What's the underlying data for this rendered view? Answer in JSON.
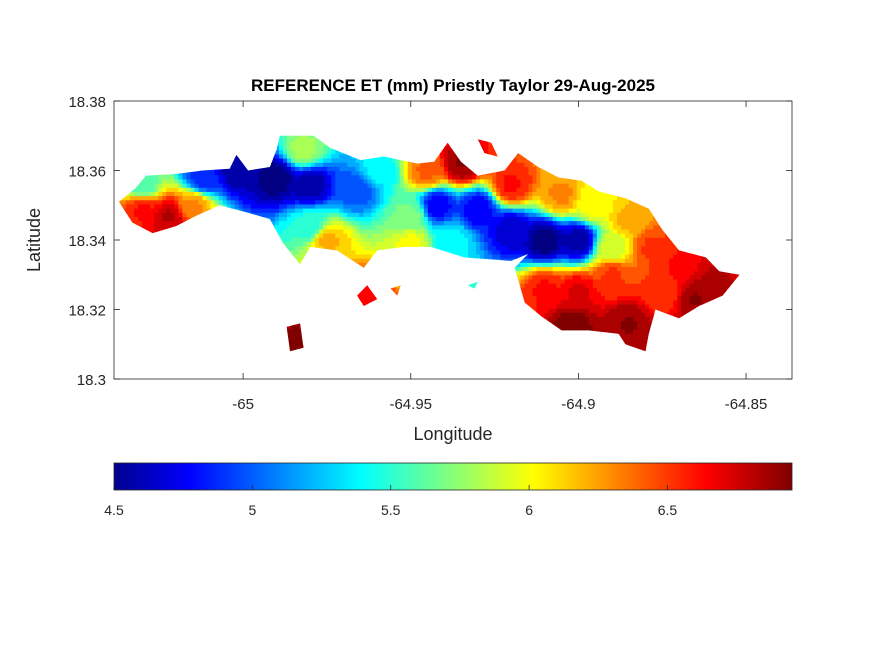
{
  "chart_data": {
    "type": "heatmap",
    "title": "REFERENCE ET (mm) Priestly Taylor 29-Aug-2025",
    "xlabel": "Longitude",
    "ylabel": "Latitude",
    "xlim": [
      -65.0385,
      -64.8363
    ],
    "ylim": [
      18.3,
      18.38
    ],
    "xticks": [
      -65,
      -64.95,
      -64.9,
      -64.85
    ],
    "xtick_labels": [
      "-65",
      "-64.95",
      "-64.9",
      "-64.85"
    ],
    "yticks": [
      18.3,
      18.32,
      18.34,
      18.36,
      18.38
    ],
    "ytick_labels": [
      "18.3",
      "18.32",
      "18.34",
      "18.36",
      "18.38"
    ],
    "colorbar": {
      "colormap": "jet",
      "range": [
        4.5,
        6.95
      ],
      "ticks": [
        4.5,
        5,
        5.5,
        6,
        6.5
      ],
      "tick_labels": [
        "4.5",
        "5",
        "5.5",
        "6",
        "6.5"
      ],
      "placement": "bottom"
    },
    "outline": [
      [
        -65.037,
        18.351
      ],
      [
        -65.032,
        18.355
      ],
      [
        -65.029,
        18.3585
      ],
      [
        -65.02,
        18.359
      ],
      [
        -65.012,
        18.36
      ],
      [
        -65.004,
        18.3605
      ],
      [
        -65.002,
        18.3645
      ],
      [
        -64.9985,
        18.36
      ],
      [
        -64.992,
        18.361
      ],
      [
        -64.99,
        18.366
      ],
      [
        -64.989,
        18.37
      ],
      [
        -64.979,
        18.37
      ],
      [
        -64.974,
        18.3665
      ],
      [
        -64.965,
        18.363
      ],
      [
        -64.958,
        18.364
      ],
      [
        -64.948,
        18.362
      ],
      [
        -64.943,
        18.3625
      ],
      [
        -64.939,
        18.368
      ],
      [
        -64.935,
        18.3625
      ],
      [
        -64.93,
        18.3585
      ],
      [
        -64.922,
        18.36
      ],
      [
        -64.918,
        18.365
      ],
      [
        -64.912,
        18.361
      ],
      [
        -64.906,
        18.358
      ],
      [
        -64.899,
        18.357
      ],
      [
        -64.894,
        18.354
      ],
      [
        -64.886,
        18.352
      ],
      [
        -64.879,
        18.349
      ],
      [
        -64.875,
        18.343
      ],
      [
        -64.87,
        18.337
      ],
      [
        -64.862,
        18.335
      ],
      [
        -64.858,
        18.331
      ],
      [
        -64.852,
        18.33
      ],
      [
        -64.857,
        18.324
      ],
      [
        -64.864,
        18.321
      ],
      [
        -64.87,
        18.3175
      ],
      [
        -64.877,
        18.32
      ],
      [
        -64.879,
        18.313
      ],
      [
        -64.88,
        18.308
      ],
      [
        -64.886,
        18.31
      ],
      [
        -64.888,
        18.313
      ],
      [
        -64.897,
        18.314
      ],
      [
        -64.905,
        18.314
      ],
      [
        -64.911,
        18.318
      ],
      [
        -64.916,
        18.322
      ],
      [
        -64.919,
        18.332
      ],
      [
        -64.915,
        18.336
      ],
      [
        -64.92,
        18.334
      ],
      [
        -64.934,
        18.335
      ],
      [
        -64.944,
        18.338
      ],
      [
        -64.952,
        18.338
      ],
      [
        -64.96,
        18.337
      ],
      [
        -64.964,
        18.332
      ],
      [
        -64.972,
        18.337
      ],
      [
        -64.98,
        18.338
      ],
      [
        -64.983,
        18.333
      ],
      [
        -64.988,
        18.339
      ],
      [
        -64.992,
        18.346
      ],
      [
        -64.999,
        18.348
      ],
      [
        -65.007,
        18.35
      ],
      [
        -65.014,
        18.347
      ],
      [
        -65.02,
        18.344
      ],
      [
        -65.027,
        18.342
      ],
      [
        -65.033,
        18.345
      ],
      [
        -65.037,
        18.351
      ]
    ],
    "islets": [
      [
        [
          -64.964,
          18.321
        ],
        [
          -64.96,
          18.323
        ],
        [
          -64.963,
          18.327
        ],
        [
          -64.966,
          18.324
        ]
      ],
      [
        [
          -64.987,
          18.315
        ],
        [
          -64.983,
          18.316
        ],
        [
          -64.982,
          18.309
        ],
        [
          -64.986,
          18.308
        ]
      ],
      [
        [
          -64.956,
          18.326
        ],
        [
          -64.953,
          18.327
        ],
        [
          -64.954,
          18.324
        ]
      ],
      [
        [
          -64.933,
          18.327
        ],
        [
          -64.93,
          18.328
        ],
        [
          -64.931,
          18.326
        ]
      ],
      [
        [
          -64.93,
          18.369
        ],
        [
          -64.926,
          18.368
        ],
        [
          -64.924,
          18.364
        ],
        [
          -64.928,
          18.365
        ]
      ]
    ],
    "field_anchors": [
      {
        "lon": -65.03,
        "lat": 18.349,
        "et": 6.6
      },
      {
        "lon": -65.022,
        "lat": 18.347,
        "et": 6.8
      },
      {
        "lon": -65.03,
        "lat": 18.356,
        "et": 5.6
      },
      {
        "lon": -65.012,
        "lat": 18.358,
        "et": 4.9
      },
      {
        "lon": -65.015,
        "lat": 18.35,
        "et": 6.3
      },
      {
        "lon": -65.002,
        "lat": 18.36,
        "et": 4.6
      },
      {
        "lon": -64.99,
        "lat": 18.358,
        "et": 4.5
      },
      {
        "lon": -64.98,
        "lat": 18.356,
        "et": 4.6
      },
      {
        "lon": -64.982,
        "lat": 18.366,
        "et": 5.8
      },
      {
        "lon": -64.98,
        "lat": 18.344,
        "et": 5.5
      },
      {
        "lon": -64.975,
        "lat": 18.34,
        "et": 6.2
      },
      {
        "lon": -64.966,
        "lat": 18.355,
        "et": 5.0
      },
      {
        "lon": -64.96,
        "lat": 18.36,
        "et": 5.4
      },
      {
        "lon": -64.95,
        "lat": 18.347,
        "et": 5.7
      },
      {
        "lon": -64.942,
        "lat": 18.35,
        "et": 4.8
      },
      {
        "lon": -64.938,
        "lat": 18.34,
        "et": 5.4
      },
      {
        "lon": -64.93,
        "lat": 18.349,
        "et": 4.8
      },
      {
        "lon": -64.95,
        "lat": 18.339,
        "et": 6.0
      },
      {
        "lon": -64.945,
        "lat": 18.36,
        "et": 6.4
      },
      {
        "lon": -64.935,
        "lat": 18.362,
        "et": 6.9
      },
      {
        "lon": -64.92,
        "lat": 18.343,
        "et": 4.7
      },
      {
        "lon": -64.91,
        "lat": 18.34,
        "et": 4.5
      },
      {
        "lon": -64.9,
        "lat": 18.34,
        "et": 4.6
      },
      {
        "lon": -64.92,
        "lat": 18.356,
        "et": 6.6
      },
      {
        "lon": -64.905,
        "lat": 18.353,
        "et": 6.3
      },
      {
        "lon": -64.896,
        "lat": 18.35,
        "et": 6.0
      },
      {
        "lon": -64.89,
        "lat": 18.338,
        "et": 5.9
      },
      {
        "lon": -64.885,
        "lat": 18.346,
        "et": 6.2
      },
      {
        "lon": -64.878,
        "lat": 18.338,
        "et": 6.5
      },
      {
        "lon": -64.87,
        "lat": 18.333,
        "et": 6.6
      },
      {
        "lon": -64.86,
        "lat": 18.329,
        "et": 6.8
      },
      {
        "lon": -64.875,
        "lat": 18.325,
        "et": 6.5
      },
      {
        "lon": -64.865,
        "lat": 18.323,
        "et": 6.9
      },
      {
        "lon": -64.91,
        "lat": 18.326,
        "et": 6.6
      },
      {
        "lon": -64.9,
        "lat": 18.325,
        "et": 6.7
      },
      {
        "lon": -64.89,
        "lat": 18.33,
        "et": 6.5
      },
      {
        "lon": -64.902,
        "lat": 18.316,
        "et": 6.95
      },
      {
        "lon": -64.885,
        "lat": 18.316,
        "et": 6.9
      },
      {
        "lon": -64.964,
        "lat": 18.324,
        "et": 6.6
      },
      {
        "lon": -64.984,
        "lat": 18.312,
        "et": 6.9
      }
    ]
  }
}
